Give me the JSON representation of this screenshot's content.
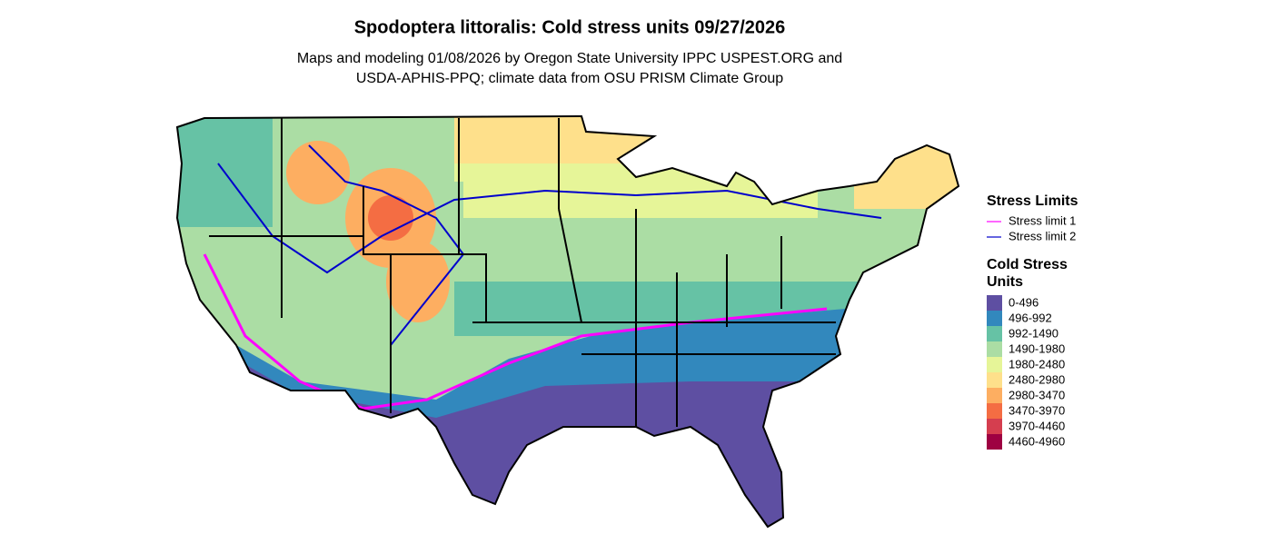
{
  "title": "Spodoptera littoralis: Cold stress units 09/27/2026",
  "subtitle": [
    "Maps and modeling 01/08/2026 by Oregon State University IPPC USPEST.ORG and",
    "USDA-APHIS-PPQ; climate data from OSU PRISM Climate Group"
  ],
  "legend": {
    "stress_limits": {
      "title": "Stress Limits",
      "items": [
        {
          "label": "Stress limit 1",
          "color": "#ff00ff"
        },
        {
          "label": "Stress limit 2",
          "color": "#0000cc"
        }
      ]
    },
    "cold_stress_units": {
      "title": [
        "Cold Stress",
        "Units"
      ],
      "items": [
        {
          "label": "0-496",
          "color": "#5e4fa2"
        },
        {
          "label": "496-992",
          "color": "#3288bd"
        },
        {
          "label": "992-1490",
          "color": "#66c2a5"
        },
        {
          "label": "1490-1980",
          "color": "#abdda4"
        },
        {
          "label": "1980-2480",
          "color": "#e6f598"
        },
        {
          "label": "2480-2980",
          "color": "#fee08b"
        },
        {
          "label": "2980-3470",
          "color": "#fdae61"
        },
        {
          "label": "3470-3970",
          "color": "#f46d43"
        },
        {
          "label": "3970-4460",
          "color": "#d53e4f"
        },
        {
          "label": "4460-4960",
          "color": "#9e0142"
        }
      ]
    }
  }
}
